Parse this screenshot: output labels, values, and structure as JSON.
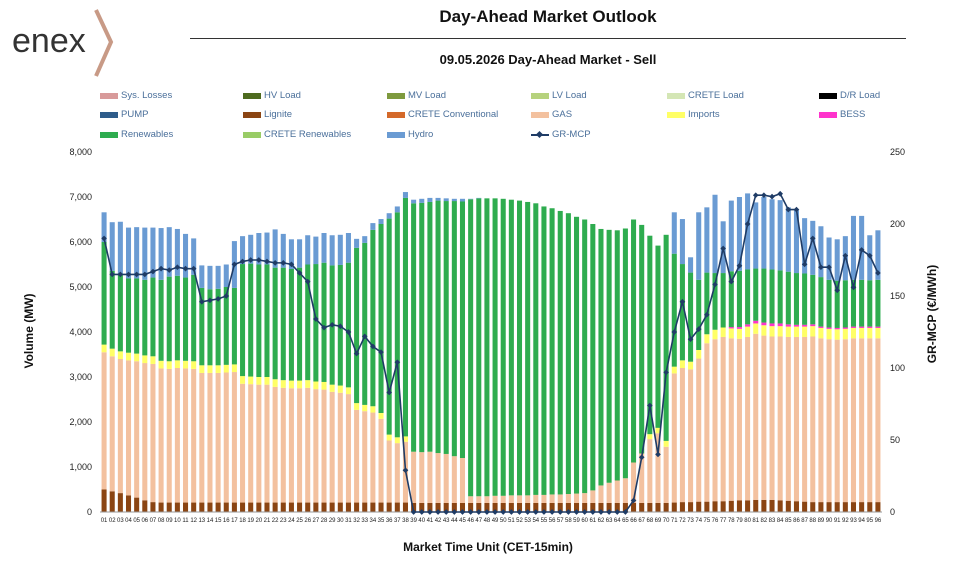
{
  "header": {
    "logo_text": "enex",
    "title": "Day-Ahead Market Outlook",
    "subtitle": "09.05.2026  Day-Ahead Market - Sell"
  },
  "colors": {
    "Sys. Losses": "#d89a9a",
    "HV Load": "#4e6b1f",
    "MV Load": "#7e9a3e",
    "LV Load": "#b6d27d",
    "CRETE Load": "#d4e6b5",
    "D/R Load": "#000000",
    "PUMP": "#2e5c8a",
    "Lignite": "#8b4513",
    "CRETE Conventional": "#d4692a",
    "GAS": "#f3c19f",
    "Imports": "#ffff66",
    "BESS": "#ff33cc",
    "Renewables": "#2eac4f",
    "CRETE Renewables": "#99cc66",
    "Hydro": "#6a9bd3",
    "GR-MCP": "#1f3c66",
    "logo_gray": "#333333",
    "logo_accent": "#c89a86"
  },
  "chart_data": {
    "type": "bar",
    "stacked": true,
    "title": "Day-Ahead Market Outlook",
    "subtitle": "09.05.2026  Day-Ahead Market - Sell",
    "xlabel": "Market Time Unit (CET-15min)",
    "ylabel": "Volume (MW)",
    "y2label": "GR-MCP (€/MWh)",
    "ylim": [
      0,
      8000
    ],
    "y2lim": [
      0,
      250
    ],
    "yticks": [
      "0",
      "1,000",
      "2,000",
      "3,000",
      "4,000",
      "5,000",
      "6,000",
      "7,000",
      "8,000"
    ],
    "y2ticks": [
      "0",
      "50",
      "100",
      "150",
      "200",
      "250"
    ],
    "grid": false,
    "legend_position": "top",
    "legend": [
      "Sys. Losses",
      "HV Load",
      "MV Load",
      "LV Load",
      "CRETE Load",
      "D/R Load",
      "PUMP",
      "Lignite",
      "CRETE Conventional",
      "GAS",
      "Imports",
      "BESS",
      "Renewables",
      "CRETE Renewables",
      "Hydro",
      "GR-MCP"
    ],
    "categories": [
      "01",
      "02",
      "03",
      "04",
      "05",
      "06",
      "07",
      "08",
      "09",
      "10",
      "11",
      "12",
      "13",
      "14",
      "15",
      "16",
      "17",
      "18",
      "19",
      "20",
      "21",
      "22",
      "23",
      "24",
      "25",
      "26",
      "27",
      "28",
      "29",
      "30",
      "31",
      "32",
      "33",
      "34",
      "35",
      "36",
      "37",
      "38",
      "39",
      "40",
      "41",
      "42",
      "43",
      "44",
      "45",
      "46",
      "47",
      "48",
      "49",
      "50",
      "51",
      "52",
      "53",
      "54",
      "55",
      "56",
      "57",
      "58",
      "59",
      "60",
      "61",
      "62",
      "63",
      "64",
      "65",
      "66",
      "67",
      "68",
      "69",
      "70",
      "71",
      "72",
      "73",
      "74",
      "75",
      "76",
      "77",
      "78",
      "79",
      "80",
      "81",
      "82",
      "83",
      "84",
      "85",
      "86",
      "87",
      "88",
      "89",
      "90",
      "91",
      "92",
      "93",
      "94",
      "95",
      "96"
    ],
    "series": [
      {
        "name": "Lignite",
        "values": [
          500,
          460,
          420,
          370,
          320,
          260,
          220,
          210,
          210,
          210,
          210,
          210,
          210,
          210,
          210,
          210,
          210,
          210,
          210,
          210,
          210,
          210,
          210,
          210,
          210,
          210,
          210,
          210,
          210,
          210,
          210,
          210,
          210,
          210,
          210,
          210,
          210,
          210,
          200,
          200,
          200,
          200,
          200,
          200,
          200,
          200,
          200,
          200,
          200,
          200,
          200,
          200,
          200,
          200,
          200,
          200,
          200,
          200,
          200,
          200,
          200,
          200,
          200,
          200,
          200,
          200,
          200,
          200,
          200,
          200,
          210,
          220,
          220,
          230,
          230,
          240,
          240,
          250,
          260,
          260,
          270,
          270,
          270,
          260,
          250,
          240,
          230,
          220,
          220,
          220,
          220,
          220,
          220,
          220,
          220,
          220
        ]
      },
      {
        "name": "GAS",
        "values": [
          3050,
          3000,
          2980,
          3000,
          3030,
          3050,
          3070,
          2980,
          2970,
          2990,
          2980,
          2970,
          2880,
          2880,
          2880,
          2890,
          2900,
          2640,
          2630,
          2620,
          2620,
          2570,
          2550,
          2540,
          2540,
          2550,
          2520,
          2510,
          2460,
          2440,
          2410,
          2060,
          2030,
          2000,
          1860,
          1380,
          1320,
          1350,
          1140,
          1130,
          1140,
          1110,
          1090,
          1040,
          1000,
          150,
          150,
          150,
          160,
          160,
          170,
          170,
          170,
          180,
          180,
          190,
          190,
          200,
          210,
          220,
          280,
          390,
          450,
          500,
          550,
          900,
          1100,
          1420,
          1550,
          1250,
          2870,
          2980,
          2950,
          3180,
          3520,
          3600,
          3650,
          3610,
          3590,
          3630,
          3690,
          3650,
          3630,
          3640,
          3640,
          3650,
          3660,
          3680,
          3640,
          3620,
          3610,
          3620,
          3640,
          3640,
          3640,
          3640
        ]
      },
      {
        "name": "Imports",
        "values": [
          170,
          170,
          170,
          170,
          170,
          170,
          170,
          170,
          170,
          170,
          170,
          170,
          170,
          170,
          170,
          170,
          170,
          170,
          170,
          170,
          170,
          170,
          170,
          170,
          170,
          170,
          170,
          170,
          160,
          160,
          150,
          150,
          140,
          140,
          130,
          130,
          130,
          120,
          0,
          0,
          0,
          0,
          0,
          0,
          0,
          0,
          0,
          0,
          0,
          0,
          0,
          0,
          0,
          0,
          0,
          0,
          0,
          0,
          0,
          0,
          0,
          0,
          0,
          0,
          0,
          0,
          0,
          110,
          120,
          130,
          150,
          170,
          170,
          190,
          200,
          210,
          210,
          220,
          220,
          230,
          230,
          230,
          230,
          230,
          230,
          230,
          230,
          230,
          230,
          230,
          230,
          230,
          230,
          230,
          230,
          230
        ]
      },
      {
        "name": "BESS",
        "values": [
          0,
          0,
          0,
          0,
          0,
          0,
          0,
          0,
          0,
          0,
          0,
          0,
          0,
          0,
          0,
          0,
          0,
          0,
          0,
          0,
          0,
          0,
          0,
          0,
          0,
          0,
          0,
          0,
          0,
          0,
          0,
          0,
          0,
          0,
          0,
          0,
          0,
          0,
          0,
          0,
          0,
          0,
          0,
          0,
          0,
          0,
          0,
          0,
          0,
          0,
          0,
          0,
          0,
          0,
          0,
          0,
          0,
          0,
          0,
          0,
          0,
          0,
          0,
          0,
          0,
          0,
          0,
          0,
          0,
          0,
          0,
          0,
          0,
          0,
          0,
          0,
          0,
          30,
          40,
          50,
          60,
          60,
          60,
          60,
          50,
          40,
          40,
          40,
          30,
          30,
          30,
          30,
          30,
          30,
          30,
          30
        ]
      },
      {
        "name": "Renewables",
        "values": [
          2280,
          1730,
          1730,
          1650,
          1670,
          1680,
          1750,
          1800,
          1880,
          1880,
          1850,
          1920,
          1720,
          1690,
          1700,
          1730,
          1700,
          2490,
          2510,
          2500,
          2500,
          2480,
          2500,
          2480,
          2510,
          2570,
          2610,
          2650,
          2650,
          2680,
          2770,
          3450,
          3600,
          3920,
          4200,
          4800,
          5000,
          5300,
          5520,
          5540,
          5550,
          5610,
          5620,
          5670,
          5700,
          6600,
          6620,
          6620,
          6610,
          6600,
          6570,
          6550,
          6520,
          6480,
          6410,
          6360,
          6300,
          6240,
          6150,
          6080,
          5920,
          5700,
          5620,
          5560,
          5550,
          5400,
          5080,
          4410,
          4050,
          4580,
          2510,
          2140,
          1980,
          1560,
          1370,
          1260,
          1210,
          1240,
          1250,
          1220,
          1160,
          1200,
          1200,
          1180,
          1170,
          1150,
          1140,
          1100,
          1100,
          1060,
          1050,
          1050,
          1040,
          1040,
          1030,
          1040
        ]
      },
      {
        "name": "Hydro",
        "values": [
          660,
          1080,
          1150,
          1130,
          1140,
          1160,
          1110,
          1150,
          1100,
          1040,
          970,
          810,
          500,
          520,
          510,
          500,
          1040,
          620,
          640,
          700,
          710,
          850,
          750,
          660,
          630,
          650,
          610,
          660,
          670,
          670,
          660,
          200,
          150,
          150,
          110,
          120,
          130,
          130,
          80,
          90,
          90,
          60,
          60,
          50,
          60,
          10,
          10,
          0,
          0,
          0,
          0,
          0,
          0,
          0,
          0,
          0,
          0,
          0,
          0,
          0,
          0,
          0,
          0,
          0,
          0,
          0,
          0,
          0,
          0,
          0,
          920,
          1000,
          340,
          1500,
          1450,
          1740,
          1150,
          1570,
          1640,
          1690,
          1470,
          1590,
          1560,
          1560,
          1430,
          1390,
          1230,
          1200,
          1130,
          940,
          920,
          980,
          1420,
          1420,
          1000,
          1100
        ]
      }
    ],
    "line_series": {
      "name": "GR-MCP",
      "axis": "right",
      "values": [
        190,
        165,
        165,
        165,
        165,
        165,
        167,
        169,
        168,
        170,
        169,
        169,
        146,
        147,
        148,
        150,
        172,
        174,
        175,
        175,
        174,
        173,
        173,
        172,
        166,
        160,
        134,
        128,
        130,
        129,
        125,
        110,
        122,
        115,
        111,
        83,
        104,
        29,
        0,
        0,
        0,
        0,
        0,
        0,
        0,
        0,
        0,
        0,
        0,
        0,
        0,
        0,
        0,
        0,
        0,
        0,
        0,
        0,
        0,
        0,
        0,
        0,
        0,
        0,
        0,
        8,
        38,
        74,
        40,
        97,
        125,
        146,
        120,
        127,
        137,
        158,
        183,
        160,
        171,
        200,
        220,
        220,
        219,
        221,
        210,
        210,
        172,
        190,
        170,
        170,
        154,
        178,
        156,
        182,
        178,
        166
      ]
    }
  }
}
